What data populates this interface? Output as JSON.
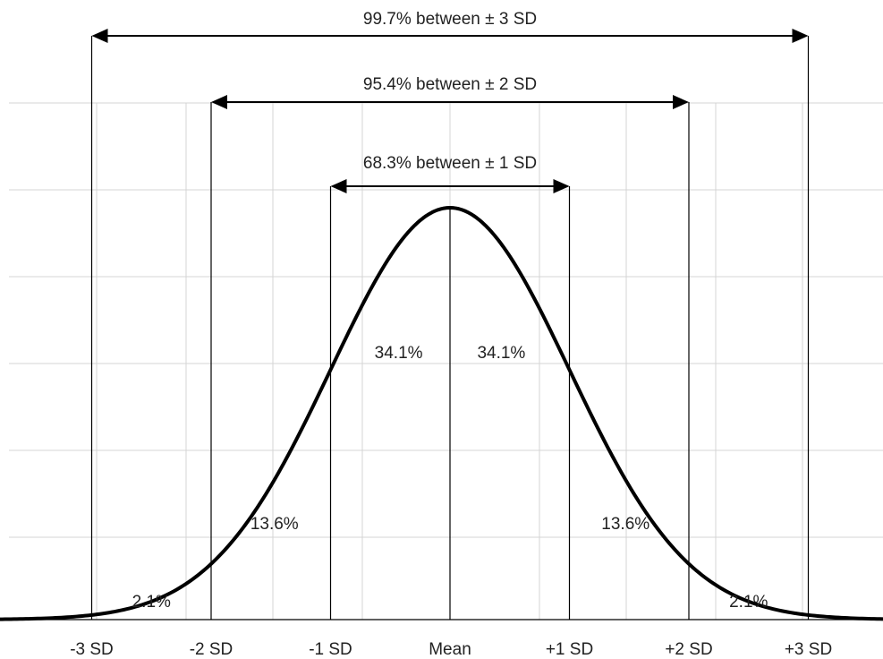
{
  "colors": {
    "curve": "#000000",
    "grid": "#d4d4d4",
    "text": "#222222",
    "background": "#ffffff"
  },
  "chart_data": {
    "type": "line",
    "distribution": "normal",
    "x": [
      -3,
      -2,
      -1,
      0,
      1,
      2,
      3
    ],
    "xtick_labels": [
      "-3 SD",
      "-2 SD",
      "-1 SD",
      "Mean",
      "+1 SD",
      "+2 SD",
      "+3 SD"
    ],
    "xlim": [
      -3.8,
      3.65
    ],
    "grid": true,
    "ranges": [
      {
        "from": -1,
        "to": 1,
        "label": "68.3% between ± 1 SD"
      },
      {
        "from": -2,
        "to": 2,
        "label": "95.4% between ± 2 SD"
      },
      {
        "from": -3,
        "to": 3,
        "label": "99.7% between ± 3 SD"
      }
    ],
    "areas": [
      {
        "x": -2.5,
        "label": "2.1%"
      },
      {
        "x": -1.47,
        "label": "13.6%"
      },
      {
        "x": -0.43,
        "label": "34.1%"
      },
      {
        "x": 0.43,
        "label": "34.1%"
      },
      {
        "x": 1.47,
        "label": "13.6%"
      },
      {
        "x": 2.5,
        "label": "2.1%"
      }
    ]
  }
}
